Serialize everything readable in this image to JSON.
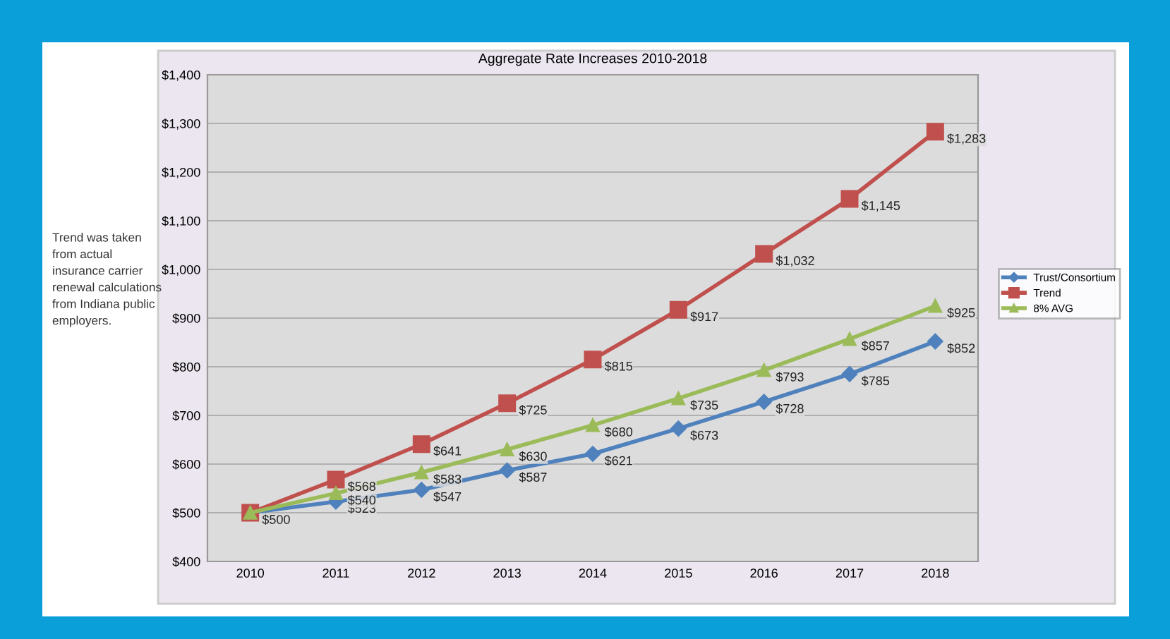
{
  "chart_data": {
    "type": "line",
    "title": "Aggregate Rate Increases 2010-2018",
    "categories": [
      "2010",
      "2011",
      "2012",
      "2013",
      "2014",
      "2015",
      "2016",
      "2017",
      "2018"
    ],
    "series": [
      {
        "name": "Trust/Consortium",
        "color": "#4f81bd",
        "marker": "diamond",
        "values": [
          500,
          523,
          547,
          587,
          621,
          673,
          728,
          785,
          852
        ],
        "value_labels": [
          "$500",
          "$523",
          "$547",
          "$587",
          "$621",
          "$673",
          "$728",
          "$785",
          "$852"
        ]
      },
      {
        "name": "Trend",
        "color": "#c0504d",
        "marker": "square",
        "values": [
          500,
          568,
          641,
          725,
          815,
          917,
          1032,
          1145,
          1283
        ],
        "value_labels": [
          null,
          "$568",
          "$641",
          "$725",
          "$815",
          "$917",
          "$1,032",
          "$1,145",
          "$1,283"
        ]
      },
      {
        "name": "8% AVG",
        "color": "#9bbb59",
        "marker": "triangle",
        "values": [
          500,
          540,
          583,
          630,
          680,
          735,
          793,
          857,
          925
        ],
        "value_labels": [
          null,
          "$540",
          "$583",
          "$630",
          "$680",
          "$735",
          "$793",
          "$857",
          "$925"
        ]
      }
    ],
    "ylim": [
      400,
      1400
    ],
    "yticks": [
      {
        "value": 400,
        "label": "$400"
      },
      {
        "value": 500,
        "label": "$500"
      },
      {
        "value": 600,
        "label": "$600"
      },
      {
        "value": 700,
        "label": "$700"
      },
      {
        "value": 800,
        "label": "$800"
      },
      {
        "value": 900,
        "label": "$900"
      },
      {
        "value": 1000,
        "label": "$1,000"
      },
      {
        "value": 1100,
        "label": "$1,100"
      },
      {
        "value": 1200,
        "label": "$1,200"
      },
      {
        "value": 1300,
        "label": "$1,300"
      },
      {
        "value": 1400,
        "label": "$1,400"
      }
    ],
    "grid": "y",
    "legend": "right",
    "line_style": "solid",
    "annotations": [
      "Trend was taken from actual insurance carrier renewal calculations from Indiana public employers."
    ]
  }
}
